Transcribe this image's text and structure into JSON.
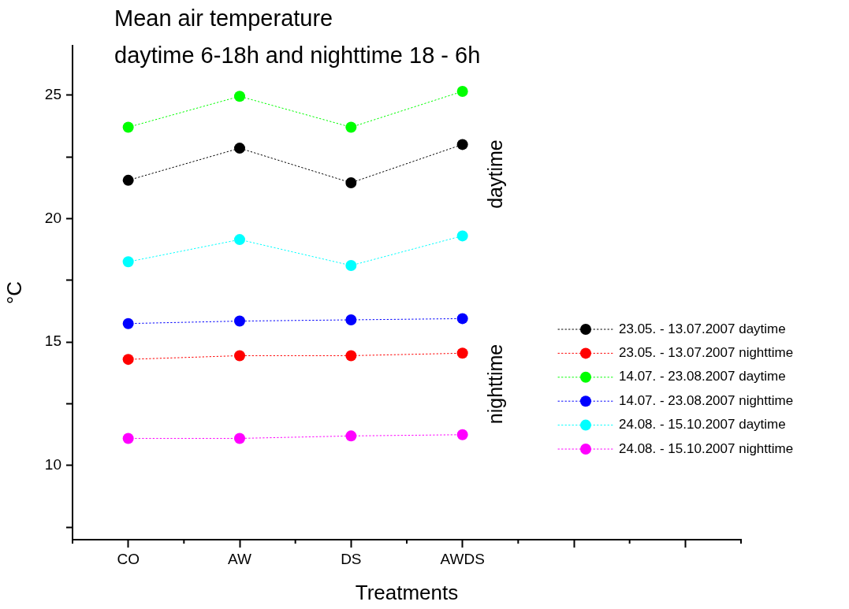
{
  "chart_data": {
    "type": "line",
    "title": "Mean air temperature",
    "subtitle": "daytime 6-18h and nighttime 18 - 6h",
    "xlabel": "Treatments",
    "ylabel": "°C",
    "categories": [
      "CO",
      "AW",
      "DS",
      "AWDS",
      null,
      null
    ],
    "ylim": [
      7,
      27
    ],
    "yticks": [
      {
        "value": 7.5,
        "label": null
      },
      10,
      {
        "value": 12.5,
        "label": null
      },
      15,
      {
        "value": 17.5,
        "label": null
      },
      20,
      {
        "value": 22.5,
        "label": null
      },
      25
    ],
    "grid": false,
    "legend": "right",
    "marker": "circle",
    "line_style": "dotted",
    "annotations": [
      "daytime",
      "nighttime"
    ],
    "series": [
      {
        "name": "23.05. - 13.07.2007 daytime",
        "color": "#000000",
        "values": [
          21.55,
          22.85,
          21.45,
          23.0,
          null,
          null
        ]
      },
      {
        "name": "23.05. - 13.07.2007 nighttime",
        "color": "#ff0000",
        "values": [
          14.3,
          14.45,
          14.45,
          14.55,
          null,
          null
        ]
      },
      {
        "name": "14.07. - 23.08.2007 daytime",
        "color": "#00ff00",
        "values": [
          23.7,
          24.95,
          23.7,
          25.15,
          null,
          null
        ]
      },
      {
        "name": "14.07. - 23.08.2007 nighttime",
        "color": "#0000ff",
        "values": [
          15.75,
          15.85,
          15.9,
          15.95,
          null,
          null
        ]
      },
      {
        "name": "24.08. - 15.10.2007 daytime",
        "color": "#00ffff",
        "values": [
          18.25,
          19.15,
          18.1,
          19.3,
          null,
          null
        ]
      },
      {
        "name": "24.08. - 15.10.2007 nighttime",
        "color": "#ff00ff",
        "values": [
          11.1,
          11.1,
          11.2,
          11.25,
          null,
          null
        ]
      }
    ]
  }
}
